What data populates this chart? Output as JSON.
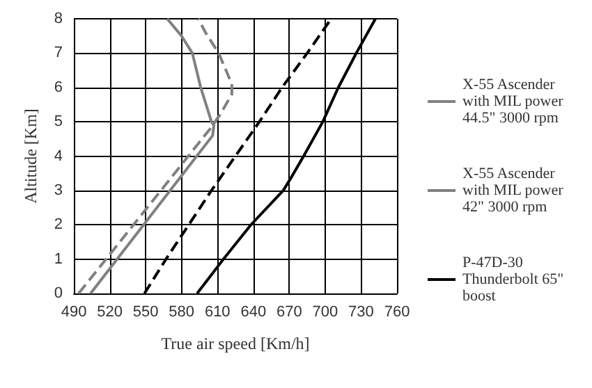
{
  "chart_data": {
    "type": "line",
    "xlabel": "True air speed [Km/h]",
    "ylabel": "Altitude [Km]",
    "xlim": [
      490,
      760
    ],
    "xticks": [
      490,
      520,
      550,
      580,
      610,
      640,
      670,
      700,
      730,
      760
    ],
    "ylim": [
      0,
      8
    ],
    "yticks": [
      0,
      1,
      2,
      3,
      4,
      5,
      6,
      7,
      8
    ],
    "grid": true,
    "legend": "right",
    "marker": "none",
    "series": [
      {
        "name": "X-55 Ascender with MIL power 44.5\" 3000 rpm",
        "color": "#808080",
        "line_style": "dashed",
        "x": [
          494,
          604,
          612,
          622,
          622,
          611,
          600,
          594
        ],
        "values": [
          0,
          4.8,
          5.2,
          5.8,
          6.1,
          7,
          7.6,
          8
        ]
      },
      {
        "name": "X-55 Ascender with MIL power 42\" 3000 rpm",
        "color": "#808080",
        "line_style": "solid",
        "x": [
          504,
          606,
          607,
          605,
          596,
          589,
          580,
          568
        ],
        "values": [
          0,
          4.6,
          4.9,
          5,
          6,
          7,
          7.5,
          8
        ]
      },
      {
        "name": "P-47D-30 Thunderbolt 65\" boost",
        "color": "#000000",
        "line_style": "dashed",
        "x": [
          549,
          567,
          586,
          605,
          625,
          645,
          664,
          685,
          705
        ],
        "values": [
          0,
          1,
          2,
          3,
          4,
          5,
          6,
          7,
          8
        ]
      },
      {
        "color": "#000000",
        "line_style": "solid",
        "x": [
          593,
          615,
          638,
          665,
          672,
          682,
          698,
          711,
          726,
          742
        ],
        "values": [
          0,
          1,
          2,
          3,
          3.4,
          4,
          5,
          6,
          7,
          8
        ]
      }
    ]
  }
}
